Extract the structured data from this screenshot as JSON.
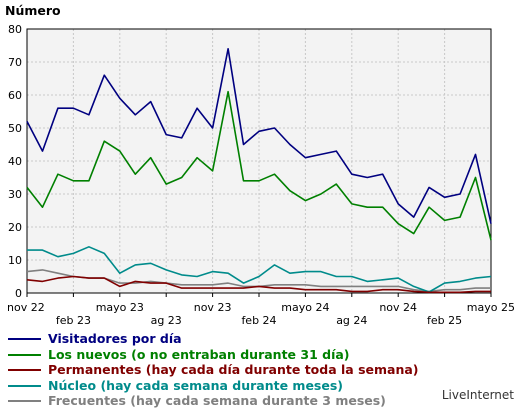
{
  "chart_data": {
    "type": "line",
    "ylabel": "Número",
    "ylim": [
      0,
      80
    ],
    "yticks": [
      0,
      10,
      20,
      30,
      40,
      50,
      60,
      70,
      80
    ],
    "xticks": [
      {
        "label": "nov 22",
        "index": 0
      },
      {
        "label": "feb 23",
        "index": 3
      },
      {
        "label": "mayo 23",
        "index": 6
      },
      {
        "label": "ag 23",
        "index": 9
      },
      {
        "label": "nov 23",
        "index": 12
      },
      {
        "label": "feb 24",
        "index": 15
      },
      {
        "label": "mayo 24",
        "index": 18
      },
      {
        "label": "ag 24",
        "index": 21
      },
      {
        "label": "nov 24",
        "index": 24
      },
      {
        "label": "feb 25",
        "index": 27
      },
      {
        "label": "mayo 25",
        "index": 30
      }
    ],
    "grid": true,
    "background": "#f3f3f3",
    "series": [
      {
        "name": "Visitadores por día",
        "color": "#000080",
        "values": [
          52,
          43,
          56,
          56,
          54,
          66,
          59,
          54,
          58,
          48,
          47,
          56,
          50,
          74,
          45,
          49,
          50,
          45,
          41,
          42,
          43,
          36,
          35,
          36,
          27,
          23,
          32,
          29,
          30,
          42,
          21
        ]
      },
      {
        "name": "Los nuevos (o no entraban durante 31 día)",
        "color": "#008000",
        "values": [
          32,
          26,
          36,
          34,
          34,
          46,
          43,
          36,
          41,
          33,
          35,
          41,
          37,
          61,
          34,
          34,
          36,
          31,
          28,
          30,
          33,
          27,
          26,
          26,
          21,
          18,
          26,
          22,
          23,
          35,
          16
        ]
      },
      {
        "name": "Permanentes (hay cada día durante toda la semana)",
        "color": "#800000",
        "values": [
          4,
          3.5,
          4.5,
          5,
          4.5,
          4.5,
          2,
          3.5,
          3,
          3,
          1.5,
          1.5,
          1.5,
          1.5,
          1.5,
          2,
          1.5,
          1.5,
          1,
          1,
          1,
          0.5,
          0.5,
          1,
          1,
          0.5,
          0.2,
          0.2,
          0.2,
          0.5,
          0.5
        ]
      },
      {
        "name": "Núcleo (hay cada semana durante meses)",
        "color": "#008B8B",
        "values": [
          13,
          13,
          11,
          12,
          14,
          12,
          6,
          8.5,
          9,
          7,
          5.5,
          5,
          6.5,
          6,
          3,
          5,
          8.5,
          6,
          6.5,
          6.5,
          5,
          5,
          3.5,
          4,
          4.5,
          2,
          0.3,
          3,
          3.5,
          4.5,
          5
        ]
      },
      {
        "name": "Frecuentes (hay cada semana durante 3 meses)",
        "color": "#808080",
        "values": [
          6.5,
          7,
          6,
          5,
          4.5,
          4.5,
          3,
          3,
          3.5,
          3,
          2.5,
          2.5,
          2.5,
          3,
          2,
          2,
          2.5,
          2.5,
          2.5,
          2,
          2,
          2,
          2,
          2,
          2,
          1,
          0.5,
          1,
          1,
          1.5,
          1.5
        ]
      }
    ]
  },
  "brand": "LiveInternet"
}
